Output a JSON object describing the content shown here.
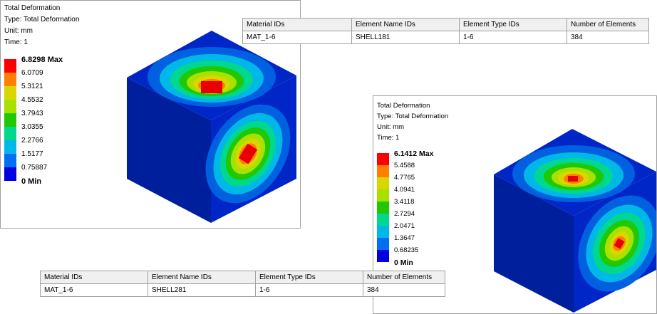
{
  "colors": {
    "scale": [
      "#ff0000",
      "#ff8000",
      "#d8d800",
      "#a8e000",
      "#20c800",
      "#00d890",
      "#00b8e8",
      "#0070f0",
      "#0000e0"
    ],
    "cube_base": "#0026c8"
  },
  "panel1": {
    "title": "Total Deformation",
    "type_line": "Type: Total Deformation",
    "unit_line": "Unit: mm",
    "time_line": "Time: 1",
    "legend": [
      "6.8298 Max",
      "6.0709",
      "5.3121",
      "4.5532",
      "3.7943",
      "3.0355",
      "2.2766",
      "1.5177",
      "0.75887",
      "0 Min"
    ]
  },
  "panel2": {
    "title": "Total Deformation",
    "type_line": "Type: Total Deformation",
    "unit_line": "Unit: mm",
    "time_line": "Time: 1",
    "legend": [
      "6.1412 Max",
      "5.4588",
      "4.7765",
      "4.0941",
      "3.4118",
      "2.7294",
      "2.0471",
      "1.3647",
      "0.68235",
      "0 Min"
    ]
  },
  "table1": {
    "headers": [
      "Material IDs",
      "Element Name IDs",
      "Element Type IDs",
      "Number of Elements"
    ],
    "row": [
      "MAT_1-6",
      "SHELL181",
      "1-6",
      "384"
    ]
  },
  "table2": {
    "headers": [
      "Material IDs",
      "Element Name IDs",
      "Element Type IDs",
      "Number of Elements"
    ],
    "row": [
      "MAT_1-6",
      "SHELL281",
      "1-6",
      "384"
    ]
  }
}
